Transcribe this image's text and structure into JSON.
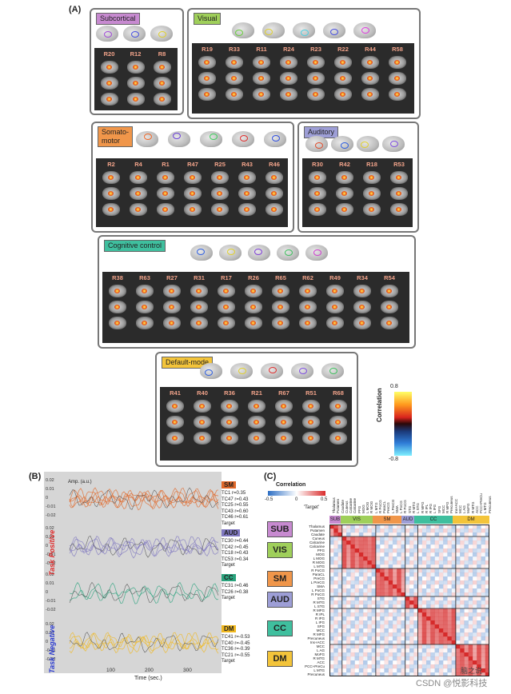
{
  "panel_a": {
    "letter": "(A)",
    "networks": [
      {
        "key": "subcortical",
        "tag": "Subcortical",
        "tag_color": "#c78ad0",
        "rois": [
          "R20",
          "R12",
          "R8"
        ]
      },
      {
        "key": "visual",
        "tag": "Visual",
        "tag_color": "#9fcf5a",
        "rois": [
          "R19",
          "R33",
          "R11",
          "R24",
          "R23",
          "R22",
          "R44",
          "R58"
        ]
      },
      {
        "key": "somatomotor",
        "tag": "Somato-\nmotor",
        "tag_color": "#f0964a",
        "rois": [
          "R2",
          "R4",
          "R1",
          "R47",
          "R25",
          "R43",
          "R46"
        ]
      },
      {
        "key": "auditory",
        "tag": "Auditory",
        "tag_color": "#9d9ed6",
        "rois": [
          "R30",
          "R42",
          "R18",
          "R53"
        ]
      },
      {
        "key": "cognitive",
        "tag": "Cognitive control",
        "tag_color": "#3fbf9e",
        "rois": [
          "R38",
          "R63",
          "R27",
          "R31",
          "R17",
          "R26",
          "R65",
          "R62",
          "R49",
          "R34",
          "R54"
        ]
      },
      {
        "key": "defaultmode",
        "tag": "Default-mode",
        "tag_color": "#f3c43a",
        "rois": [
          "R41",
          "R40",
          "R36",
          "R21",
          "R67",
          "R51",
          "R68"
        ]
      }
    ],
    "colorbar": {
      "max": "0.8",
      "min": "-0.8",
      "label": "Correlation"
    }
  },
  "panel_b": {
    "letter": "(B)",
    "ylabel": "Amp. (a.u.)",
    "xlabel": "Time (sec.)",
    "x_ticks": [
      "100",
      "200",
      "300"
    ],
    "y_ticks": [
      "0.02",
      "0.01",
      "0",
      "-0.01",
      "-0.02"
    ],
    "task_positive": "Task Positive",
    "task_negative": "Task Negative",
    "groups": [
      {
        "tag": "SM",
        "color": "#e0682a",
        "lines": [
          "TC1 r=0.35",
          "TC47 r=0.43",
          "TC25 r=0.55",
          "TC43 r=0.60",
          "TC46 r=0.61",
          "Target"
        ]
      },
      {
        "tag": "AUD",
        "color": "#8078c0",
        "lines": [
          "TC30 r=0.44",
          "TC42 r=0.45",
          "TC18 r=0.43",
          "TC53 r=0.34",
          "Target"
        ]
      },
      {
        "tag": "CC",
        "color": "#2aa37d",
        "lines": [
          "TC31 r=0.46",
          "TC26 r=0.38",
          "Target"
        ]
      },
      {
        "tag": "DM",
        "color": "#f0b81f",
        "lines": [
          "TC41 r=-0.53",
          "TC40 r=-0.45",
          "TC36 r=-0.39",
          "TC21 r=-0.55",
          "Target"
        ]
      }
    ]
  },
  "panel_c": {
    "letter": "(C)",
    "cb_title": "Correlation",
    "cb_min": "-0.5",
    "cb_zero": "0",
    "cb_max": "0.5",
    "target_label": "'Target'",
    "header_tags": [
      "SUB",
      "VIS",
      "SM",
      "AUD",
      "CC",
      "DM"
    ],
    "row_groups": [
      {
        "tag": "SUB",
        "color": "#c78ad0",
        "rows": [
          "Thalamus",
          "Putamen",
          "Caudate"
        ]
      },
      {
        "tag": "VIS",
        "color": "#9fcf5a",
        "rows": [
          "Cuneus",
          "Calcarine",
          "Calcarine",
          "PFG",
          "MOG",
          "L MOG",
          "R MOG",
          "L MTG"
        ]
      },
      {
        "tag": "SM",
        "color": "#f0964a",
        "rows": [
          "R PoCG",
          "ParaCL",
          "PreCG",
          "L PreCG",
          "SMA",
          "L PoCG",
          "R PoCG"
        ]
      },
      {
        "tag": "AUD",
        "color": "#9d9ed6",
        "rows": [
          "STG",
          "R MTG",
          "L STG"
        ]
      },
      {
        "tag": "CC",
        "color": "#3fbf9e",
        "rows": [
          "R MFG",
          "R IPL",
          "R IFG",
          "L IFG",
          "SFG",
          "MCC",
          "R MFG",
          "Precuneus",
          "Ins+ACC"
        ]
      },
      {
        "tag": "DM",
        "color": "#f3c43a",
        "rows": [
          "MCC",
          "L AG",
          "MoFG",
          "R MTG",
          "ACC",
          "PCC+PreCu",
          "L MTG",
          "Precuneus"
        ]
      }
    ],
    "column_names": [
      "Thalamus",
      "Putamen",
      "Caudate",
      "Cuneus",
      "Calcarine",
      "Calcarine",
      "PFG",
      "MOG",
      "L MOG",
      "R MOG",
      "L MTG",
      "R PoCG",
      "ParaCL",
      "PreCG",
      "L PreCG",
      "SMA",
      "L PoCG",
      "R PoCG",
      "STG",
      "R MTG",
      "L STG",
      "R MFG",
      "R IPL",
      "R IFG",
      "L IFG",
      "SFG",
      "MCC",
      "R MFG",
      "Precuneus",
      "Ins+ACC",
      "MCC",
      "L AG",
      "MoFG",
      "R MTG",
      "ACC",
      "PCC+PreCu",
      "L MTG",
      "Precuneus"
    ]
  },
  "watermark": {
    "source": "CSDN @悦影科技",
    "badge": "脑之说"
  }
}
